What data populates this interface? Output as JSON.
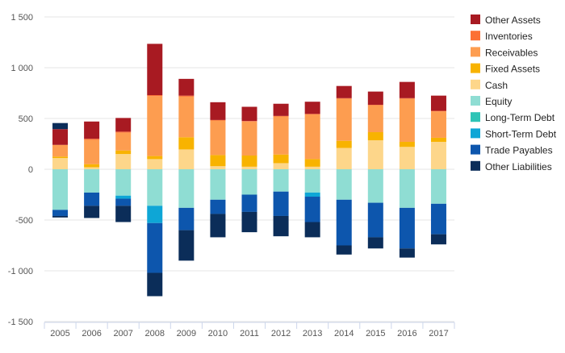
{
  "chart_data": {
    "type": "bar",
    "stacked": true,
    "title": "",
    "xlabel": "",
    "ylabel": "",
    "ylim": [
      -1500,
      1500
    ],
    "yticks": [
      -1500,
      -1000,
      -500,
      0,
      500,
      1000,
      1500
    ],
    "ytick_labels": [
      "-1 500",
      "-1 000",
      "-500",
      "0",
      "500",
      "1 000",
      "1 500"
    ],
    "grid": true,
    "legend_position": "right",
    "categories": [
      "2005",
      "2006",
      "2007",
      "2008",
      "2009",
      "2010",
      "2011",
      "2012",
      "2013",
      "2014",
      "2015",
      "2016",
      "2017"
    ],
    "positive_series": [
      {
        "name": "Cash",
        "color": "#fdd68a",
        "values": [
          110,
          20,
          150,
          100,
          195,
          30,
          25,
          60,
          25,
          210,
          285,
          220,
          270
        ]
      },
      {
        "name": "Fixed Assets",
        "color": "#f8b300",
        "values": [
          15,
          30,
          35,
          30,
          120,
          110,
          110,
          85,
          75,
          70,
          80,
          50,
          40
        ]
      },
      {
        "name": "Receivables",
        "color": "#fd9d50",
        "values": [
          115,
          240,
          175,
          590,
          400,
          340,
          335,
          375,
          440,
          415,
          265,
          425,
          260
        ]
      },
      {
        "name": "Inventories",
        "color": "#fc7034",
        "values": [
          0,
          10,
          10,
          10,
          10,
          5,
          5,
          5,
          5,
          5,
          5,
          5,
          5
        ]
      },
      {
        "name": "Other Assets",
        "color": "#a81a22",
        "values": [
          155,
          170,
          135,
          505,
          165,
          175,
          140,
          120,
          120,
          120,
          130,
          160,
          150
        ]
      }
    ],
    "negative_series": [
      {
        "name": "Equity",
        "color": "#8fddd3",
        "values": [
          -400,
          -230,
          -260,
          -360,
          -380,
          -300,
          -250,
          -220,
          -230,
          -300,
          -330,
          -380,
          -340
        ]
      },
      {
        "name": "Long-Term Debt",
        "color": "#2ec4b6",
        "values": [
          0,
          0,
          0,
          0,
          0,
          0,
          0,
          0,
          0,
          0,
          0,
          0,
          0
        ]
      },
      {
        "name": "Short-Term Debt",
        "color": "#0ea6d6",
        "values": [
          0,
          0,
          -30,
          -170,
          0,
          0,
          0,
          0,
          -40,
          0,
          0,
          0,
          0
        ]
      },
      {
        "name": "Trade Payables",
        "color": "#0d56ad",
        "values": [
          -60,
          -130,
          -70,
          -490,
          -220,
          -140,
          -170,
          -240,
          -250,
          -450,
          -340,
          -400,
          -300
        ]
      },
      {
        "name": "Other Liabilities",
        "color": "#0b2d59",
        "values": [
          -15,
          -120,
          -160,
          -230,
          -300,
          -230,
          -200,
          -200,
          -150,
          -90,
          -110,
          -90,
          -100
        ]
      }
    ],
    "legend": [
      {
        "name": "Other Assets",
        "color": "#a81a22"
      },
      {
        "name": "Inventories",
        "color": "#fc7034"
      },
      {
        "name": "Receivables",
        "color": "#fd9d50"
      },
      {
        "name": "Fixed Assets",
        "color": "#f8b300"
      },
      {
        "name": "Cash",
        "color": "#fdd68a"
      },
      {
        "name": "Equity",
        "color": "#8fddd3"
      },
      {
        "name": "Long-Term Debt",
        "color": "#2ec4b6"
      },
      {
        "name": "Short-Term Debt",
        "color": "#0ea6d6"
      },
      {
        "name": "Trade Payables",
        "color": "#0d56ad"
      },
      {
        "name": "Other Liabilities",
        "color": "#0b2d59"
      }
    ],
    "extra_bars": [
      {
        "category": "2005",
        "series": "Other Liabilities",
        "color": "#0b2d59",
        "from": 395,
        "to": 455
      }
    ]
  }
}
